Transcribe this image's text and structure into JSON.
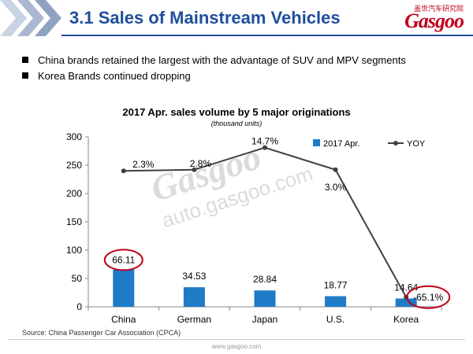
{
  "header": {
    "title": "3.1 Sales of Mainstream Vehicles",
    "logo_cn": "盖世汽车研究院",
    "logo_text": "Gasgoo"
  },
  "bullets": [
    "China brands retained the largest with the advantage of SUV and MPV segments",
    "Korea Brands continued dropping"
  ],
  "watermark": {
    "brand": "Gasgoo",
    "url": "auto.gasgoo.com"
  },
  "source": "Source: China Passenger Car Association (CPCA)",
  "footer_url": "www.gasgoo.com",
  "colors": {
    "title": "#1f4e9c",
    "bar": "#1f7ac8",
    "line": "#404040",
    "highlight": "#c0001a"
  },
  "chart_data": {
    "type": "bar",
    "title": "2017 Apr. sales volume by 5 major originations",
    "subtitle": "(thousand units)",
    "categories": [
      "China",
      "German",
      "Japan",
      "U.S.",
      "Korea"
    ],
    "ylim": [
      0,
      300
    ],
    "yticks": [
      "0",
      "50",
      "100",
      "150",
      "200",
      "250",
      "300"
    ],
    "legend_position": "top-right",
    "series": [
      {
        "name": "2017 Apr.",
        "kind": "bar",
        "values": [
          66.11,
          34.53,
          28.84,
          18.77,
          14.64
        ],
        "labels": [
          "66.11",
          "34.53",
          "28.84",
          "18.77",
          "14.64"
        ]
      },
      {
        "name": "YOY",
        "kind": "line",
        "values": [
          240,
          242,
          281,
          242,
          17
        ],
        "labels": [
          "2.3%",
          "2.8%",
          "14.7%",
          "3.0%",
          "-65.1%"
        ]
      }
    ],
    "highlighted": [
      "66.11",
      "-65.1%"
    ]
  }
}
